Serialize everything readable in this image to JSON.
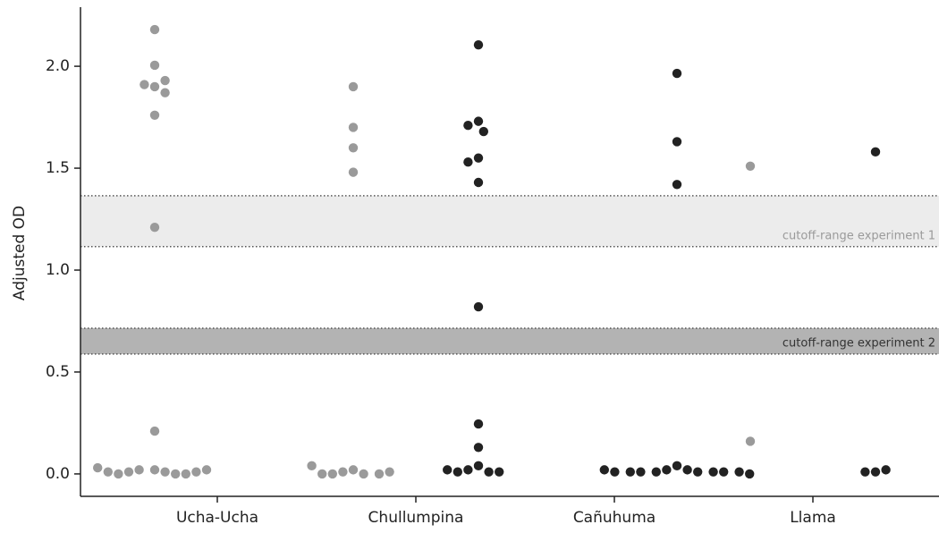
{
  "chart_data": {
    "type": "swarm",
    "y_label": "Adjusted OD",
    "categories": [
      "Ucha-Ucha",
      "Chullumpina",
      "Cañuhuma",
      "Llama"
    ],
    "ylim": [
      -0.11,
      2.29
    ],
    "yticks": [
      {
        "value": 0,
        "label": "0.0"
      },
      {
        "value": 0.5,
        "label": "0.5"
      },
      {
        "value": 1,
        "label": "1.0"
      },
      {
        "value": 1.5,
        "label": "1.5"
      },
      {
        "value": 2,
        "label": "2.0"
      }
    ],
    "series": [
      {
        "color": "#9a9a9a",
        "values": [
          [
            2.18,
            2.005,
            1.9,
            1.91,
            1.93,
            1.87,
            1.76,
            1.21,
            0.21,
            0.02,
            0.02,
            0.01,
            0.01,
            0.0,
            0.0,
            0.0,
            0.01,
            0.01,
            0.02,
            0.03
          ],
          [
            1.9,
            1.7,
            1.6,
            1.48,
            0.02,
            0.01,
            0.0,
            0.0,
            0.0,
            0.0,
            0.01,
            0.04
          ],
          [],
          [
            1.51,
            0.16
          ]
        ]
      },
      {
        "color": "#222222",
        "values": [
          [],
          [
            2.105,
            1.73,
            1.71,
            1.68,
            1.55,
            1.53,
            1.43,
            0.82,
            0.245,
            0.13,
            0.04,
            0.02,
            0.01,
            0.01,
            0.01,
            0.02
          ],
          [
            1.965,
            1.63,
            1.42,
            0.04,
            0.02,
            0.02,
            0.01,
            0.01,
            0.01,
            0.01,
            0.01,
            0.01,
            0.01,
            0.01,
            0.02,
            0.0
          ],
          [
            1.58,
            0.01,
            0.01,
            0.02
          ]
        ]
      }
    ],
    "bands": [
      {
        "range": [
          1.115,
          1.365
        ],
        "label": "cutoff-range experiment 1",
        "color": "#ececec",
        "text_color": "#9a9a9a"
      },
      {
        "range": [
          0.588,
          0.715
        ],
        "label": "cutoff-range experiment 2",
        "color": "#b3b3b3",
        "text_color": "#333333"
      }
    ]
  }
}
